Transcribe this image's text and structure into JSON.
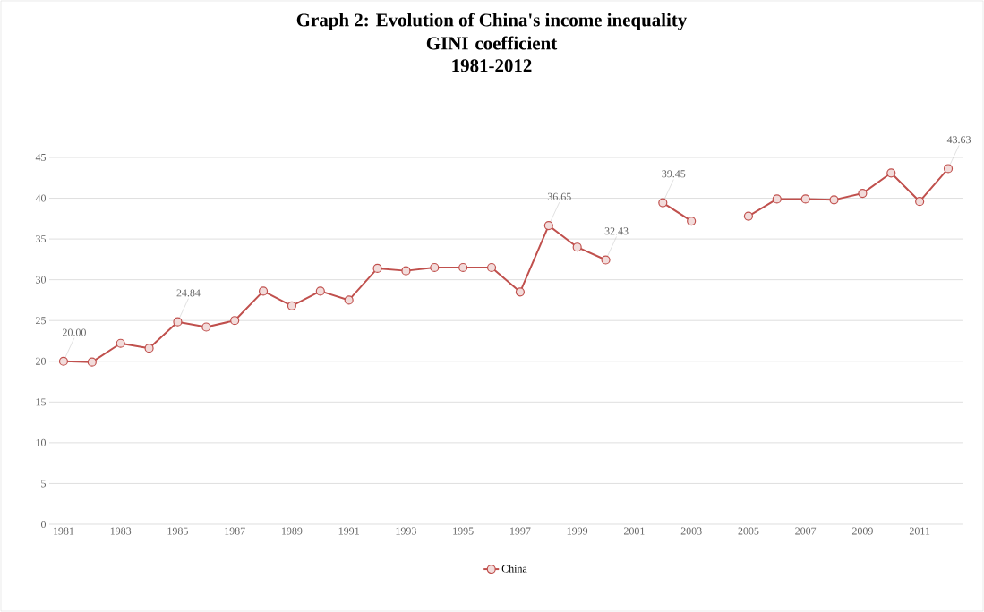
{
  "chart_data": {
    "type": "line",
    "title": "Graph 2: Evolution of China's income inequality",
    "subtitle": "GINI coefficient 1981-2012",
    "categories": [
      "1981",
      null,
      "1983",
      null,
      "1985",
      null,
      "1987",
      null,
      "1989",
      null,
      "1991",
      null,
      "1993",
      null,
      "1995",
      null,
      "1997",
      null,
      "1999",
      null,
      "2001",
      null,
      "2003",
      null,
      "2005",
      null,
      "2007",
      null,
      "2009",
      null,
      "2011",
      null
    ],
    "series": [
      {
        "name": "China",
        "color": "#c0504d",
        "values": [
          20.0,
          19.9,
          22.2,
          21.6,
          24.84,
          24.2,
          25.0,
          28.6,
          26.8,
          28.6,
          27.5,
          31.4,
          31.1,
          31.5,
          31.5,
          31.5,
          28.5,
          36.65,
          34.0,
          32.43,
          null,
          39.45,
          37.2,
          null,
          37.8,
          39.9,
          39.9,
          39.8,
          40.6,
          43.1,
          39.6,
          43.63
        ],
        "value_labels": [
          "20.00",
          null,
          null,
          null,
          "24.84",
          null,
          null,
          null,
          null,
          null,
          null,
          null,
          null,
          null,
          null,
          null,
          null,
          "36.65",
          null,
          "32.43",
          null,
          "39.45",
          null,
          null,
          null,
          null,
          null,
          null,
          null,
          null,
          null,
          "43.63"
        ]
      }
    ],
    "ylim": [
      0,
      45
    ],
    "yticks": [
      0,
      5,
      10,
      15,
      20,
      25,
      30,
      35,
      40,
      45
    ],
    "grid": "y",
    "legend": "bottom",
    "marker": "circle",
    "line_style": "solid"
  }
}
